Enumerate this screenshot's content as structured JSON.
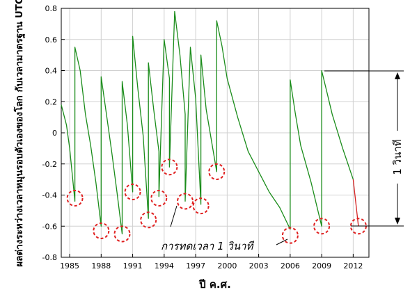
{
  "chart_data": {
    "type": "line",
    "title": "",
    "xlabel": "ปี ค.ศ.",
    "ylabel": "ผลต่างระหว่างเวลาหมุนรอบตัวเองของโลก กับเวลามาตรฐาน UTC",
    "xlim": [
      1984.2,
      2013.5
    ],
    "ylim": [
      -0.8,
      0.8
    ],
    "x_ticks": [
      "1985",
      "1988",
      "1991",
      "1994",
      "1997",
      "2000",
      "2003",
      "2006",
      "2009",
      "2012"
    ],
    "x_tick_values": [
      1985,
      1988,
      1991,
      1994,
      1997,
      2000,
      2003,
      2006,
      2009,
      2012
    ],
    "y_ticks": [
      "0.8",
      "0.6",
      "0.4",
      "0.2",
      "0",
      "-0.2",
      "-0.4",
      "-0.6",
      "-0.8"
    ],
    "y_tick_values": [
      0.8,
      0.6,
      0.4,
      0.2,
      0,
      -0.2,
      -0.4,
      -0.6,
      -0.8
    ],
    "grid": true,
    "series_colors": {
      "main": "#1a8c1a",
      "recent": "#d42020",
      "marker": "#e02020"
    },
    "series": [
      {
        "color": "#1a8c1a",
        "x": [
          1984.2,
          1984.7,
          1985.0,
          1985.5,
          1985.5,
          1986.0,
          1986.5,
          1987.0,
          1987.5,
          1988.0,
          1988.0,
          1988.5,
          1989.0,
          1989.5,
          1990.0,
          1990.0,
          1990.5,
          1991.0,
          1991.0,
          1991.5,
          1992.0,
          1992.5,
          1992.5,
          1993.0,
          1993.5,
          1993.5,
          1994.0,
          1994.5,
          1994.5,
          1995.0,
          1995.5,
          1996.0,
          1996.0,
          1996.5,
          1997.0,
          1997.5,
          1997.5,
          1998.0,
          1999.0,
          1999.0,
          1999.5,
          2000.0,
          2001.0,
          2002.0,
          2003.0,
          2004.0,
          2005.0,
          2006.0,
          2006.0,
          2006.5,
          2007.0,
          2008.0,
          2009.0,
          2009.0,
          2009.5,
          2010.0,
          2011.0,
          2012.0
        ],
        "y": [
          0.18,
          0.05,
          -0.1,
          -0.44,
          0.55,
          0.4,
          0.12,
          -0.08,
          -0.32,
          -0.6,
          0.36,
          0.12,
          -0.12,
          -0.38,
          -0.65,
          0.33,
          0.05,
          -0.38,
          0.62,
          0.28,
          -0.02,
          -0.55,
          0.45,
          0.15,
          -0.12,
          -0.41,
          0.6,
          0.35,
          -0.22,
          0.78,
          0.5,
          0.12,
          -0.44,
          0.55,
          0.22,
          -0.46,
          0.5,
          0.15,
          -0.25,
          0.72,
          0.56,
          0.35,
          0.1,
          -0.12,
          -0.25,
          -0.38,
          -0.48,
          -0.62,
          0.34,
          0.12,
          -0.08,
          -0.32,
          -0.6,
          0.4,
          0.26,
          0.12,
          -0.1,
          -0.3
        ]
      },
      {
        "color": "#d42020",
        "x": [
          2012.0,
          2012.5
        ],
        "y": [
          -0.3,
          -0.6
        ]
      }
    ],
    "leap_second_markers": [
      {
        "x": 1985.5,
        "y": -0.42
      },
      {
        "x": 1988.0,
        "y": -0.63
      },
      {
        "x": 1990.0,
        "y": -0.65
      },
      {
        "x": 1991.0,
        "y": -0.38
      },
      {
        "x": 1992.5,
        "y": -0.56
      },
      {
        "x": 1993.5,
        "y": -0.42
      },
      {
        "x": 1994.5,
        "y": -0.22
      },
      {
        "x": 1996.0,
        "y": -0.44
      },
      {
        "x": 1997.5,
        "y": -0.47
      },
      {
        "x": 1999.0,
        "y": -0.25
      },
      {
        "x": 2006.0,
        "y": -0.66
      },
      {
        "x": 2009.0,
        "y": -0.6
      },
      {
        "x": 2012.5,
        "y": -0.6
      }
    ],
    "annotation": "การทดเวลา 1 วินาที",
    "scale_label": "1 วินาที"
  }
}
